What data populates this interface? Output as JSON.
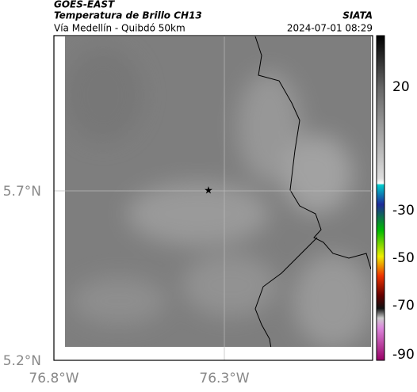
{
  "header": {
    "source": "GOES-EAST",
    "title": "Temperatura de Brillo CH13",
    "route": "Vía Medellín - Quibdó 50km",
    "agency": "SIATA",
    "timestamp": "2024-07-01 08:29"
  },
  "map": {
    "lat_ticks": [
      "5.7°N",
      "5.2°N"
    ],
    "lon_ticks": [
      "76.8°W",
      "76.3°W"
    ]
  },
  "colorbar": {
    "ticks": [
      20,
      -30,
      -50,
      -70,
      -90
    ]
  }
}
